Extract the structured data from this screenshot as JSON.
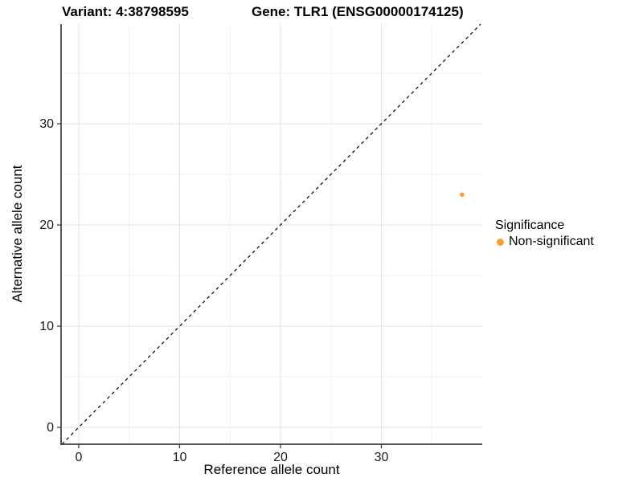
{
  "chart_data": {
    "type": "scatter",
    "titles": {
      "left": "Variant: 4:38798595",
      "right": "Gene: TLR1 (ENSG00000174125)"
    },
    "xlabel": "Reference allele count",
    "ylabel": "Alternative allele count",
    "x_ticks": [
      0,
      10,
      20,
      30
    ],
    "y_ticks": [
      0,
      10,
      20,
      30
    ],
    "x_minor_ticks": [
      5,
      15,
      25,
      35
    ],
    "y_minor_ticks": [
      5,
      15,
      25,
      35
    ],
    "xlim": [
      -1.75,
      40.0
    ],
    "ylim": [
      -1.67,
      39.85
    ],
    "grid": true,
    "reference_line": {
      "kind": "identity",
      "equation": "y = x",
      "style": "dashed",
      "color": "#000000"
    },
    "points": [
      {
        "x": 38,
        "y": 23,
        "series": "Non-significant",
        "color": "#F9A02B",
        "radius": 2.8
      }
    ],
    "legend": {
      "title": "Significance",
      "position": "right",
      "entries": [
        {
          "label": "Non-significant",
          "color": "#F9A02B"
        }
      ]
    },
    "style": {
      "background": "#ffffff",
      "grid_major": "#e2e2e2",
      "grid_minor": "#f0f0f0",
      "axis_line": "#3c3c3c",
      "tick_mark": "#3c3c3c",
      "tick_label": "#1a1a1a",
      "point_color": "#F9A02B"
    }
  }
}
